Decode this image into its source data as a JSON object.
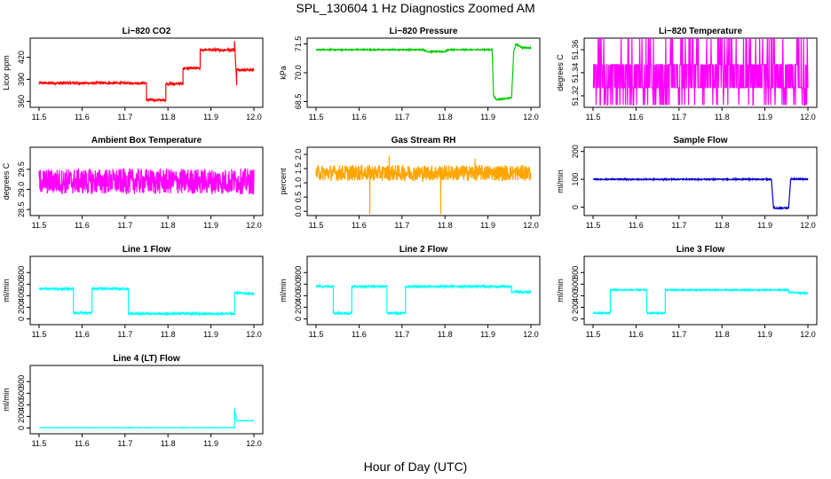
{
  "page": {
    "title": "SPL_130604  1 Hz Diagnostics Zoomed AM",
    "xlabel": "Hour of Day (UTC)"
  },
  "chart_data": [
    {
      "type": "line",
      "title": "Li−820 CO2",
      "ylabel": "Licor ppm",
      "color": "#ff0000",
      "xlim": [
        11.5,
        12.0
      ],
      "xticks": [
        "11.5",
        "11.6",
        "11.7",
        "11.8",
        "11.9",
        "12.0"
      ],
      "ylim": [
        352,
        446
      ],
      "yticks": [
        {
          "v": 360,
          "label": "360"
        },
        {
          "v": 390,
          "label": "390"
        },
        {
          "v": 420,
          "label": "420"
        }
      ],
      "noise": 1.5,
      "x": [
        11.5,
        11.75,
        11.75,
        11.795,
        11.795,
        11.835,
        11.835,
        11.875,
        11.875,
        11.955,
        11.955,
        11.96,
        11.96,
        12.0
      ],
      "y": [
        385,
        385,
        362,
        362,
        384,
        384,
        405,
        405,
        430,
        430,
        442,
        382,
        403,
        403
      ]
    },
    {
      "type": "line",
      "title": "Li−820 Pressure",
      "ylabel": "kPa",
      "color": "#00cc00",
      "xlim": [
        11.5,
        12.0
      ],
      "xticks": [
        "11.5",
        "11.6",
        "11.7",
        "11.8",
        "11.9",
        "12.0"
      ],
      "ylim": [
        68.2,
        71.8
      ],
      "yticks": [
        {
          "v": 68.5,
          "label": "68.5"
        },
        {
          "v": 70.0,
          "label": "70.0"
        },
        {
          "v": 71.5,
          "label": "71.5"
        }
      ],
      "noise": 0.03,
      "x": [
        11.5,
        11.75,
        11.76,
        11.8,
        11.81,
        11.91,
        11.913,
        11.92,
        11.955,
        11.96,
        11.965,
        11.98,
        12.0
      ],
      "y": [
        71.2,
        71.2,
        71.1,
        71.1,
        71.2,
        71.2,
        68.8,
        68.6,
        68.7,
        71.1,
        71.5,
        71.3,
        71.3
      ]
    },
    {
      "type": "line",
      "title": "Li−820 Temperature",
      "ylabel": "degrees C",
      "color": "#ff00ff",
      "xlim": [
        11.5,
        12.0
      ],
      "xticks": [
        "11.5",
        "11.6",
        "11.7",
        "11.8",
        "11.9",
        "12.0"
      ],
      "ylim": [
        51.31,
        51.37
      ],
      "yticks": [
        {
          "v": 51.32,
          "label": "51.32"
        },
        {
          "v": 51.34,
          "label": "51.34"
        },
        {
          "v": 51.36,
          "label": "51.36"
        }
      ],
      "pattern": "binary",
      "levels": [
        51.327,
        51.347,
        51.312,
        51.37
      ],
      "x": [
        11.5,
        12.0
      ],
      "y": [
        51.337,
        51.337
      ]
    },
    {
      "type": "line",
      "title": "Ambient Box Temperature",
      "ylabel": "degrees C",
      "color": "#ff00ff",
      "xlim": [
        11.5,
        12.0
      ],
      "xticks": [
        "11.5",
        "11.6",
        "11.7",
        "11.8",
        "11.9",
        "12.0"
      ],
      "ylim": [
        28.35,
        30.05
      ],
      "yticks": [
        {
          "v": 28.5,
          "label": "28.5"
        },
        {
          "v": 29.0,
          "label": "29.0"
        },
        {
          "v": 29.5,
          "label": "29.5"
        }
      ],
      "pattern": "noise",
      "noise": 0.32,
      "x": [
        11.5,
        12.0
      ],
      "y": [
        29.2,
        29.2
      ]
    },
    {
      "type": "line",
      "title": "Gas Stream RH",
      "ylabel": "percent",
      "color": "#ffa500",
      "xlim": [
        11.5,
        12.0
      ],
      "xticks": [
        "11.5",
        "11.6",
        "11.7",
        "11.8",
        "11.9",
        "12.0"
      ],
      "ylim": [
        -0.15,
        2.25
      ],
      "yticks": [
        {
          "v": 0.0,
          "label": "0.0"
        },
        {
          "v": 0.5,
          "label": "0.5"
        },
        {
          "v": 1.0,
          "label": "1.0"
        },
        {
          "v": 1.5,
          "label": "1.5"
        },
        {
          "v": 2.0,
          "label": "2.0"
        }
      ],
      "pattern": "noise",
      "noise": 0.28,
      "spikes": [
        [
          11.625,
          -0.1
        ],
        [
          11.79,
          -0.1
        ],
        [
          11.67,
          1.95
        ],
        [
          11.87,
          1.85
        ]
      ],
      "x": [
        11.5,
        12.0
      ],
      "y": [
        1.35,
        1.35
      ]
    },
    {
      "type": "line",
      "title": "Sample Flow",
      "ylabel": "ml/min",
      "color": "#0000cc",
      "xlim": [
        11.5,
        12.0
      ],
      "xticks": [
        "11.5",
        "11.6",
        "11.7",
        "11.8",
        "11.9",
        "12.0"
      ],
      "ylim": [
        -30,
        215
      ],
      "yticks": [
        {
          "v": 0,
          "label": "0"
        },
        {
          "v": 100,
          "label": "100"
        },
        {
          "v": 200,
          "label": "200"
        }
      ],
      "noise": 2,
      "x": [
        11.5,
        11.915,
        11.92,
        11.955,
        11.96,
        12.0
      ],
      "y": [
        100,
        100,
        -3,
        -3,
        102,
        100
      ]
    },
    {
      "type": "line",
      "title": "Line 1 Flow",
      "ylabel": "ml/min",
      "color": "#00ffff",
      "xlim": [
        11.5,
        12.0
      ],
      "xticks": [
        "11.5",
        "11.6",
        "11.7",
        "11.8",
        "11.9",
        "12.0"
      ],
      "ylim": [
        -100,
        1080
      ],
      "yticks": [
        {
          "v": 0,
          "label": "0"
        },
        {
          "v": 200,
          "label": "200"
        },
        {
          "v": 400,
          "label": "400"
        },
        {
          "v": 600,
          "label": "600"
        },
        {
          "v": 800,
          "label": "800"
        }
      ],
      "noise": 18,
      "x": [
        11.5,
        11.58,
        11.58,
        11.623,
        11.623,
        11.708,
        11.708,
        11.955,
        11.955,
        12.0
      ],
      "y": [
        520,
        520,
        100,
        100,
        520,
        520,
        90,
        90,
        450,
        430
      ]
    },
    {
      "type": "line",
      "title": "Line 2 Flow",
      "ylabel": "ml/min",
      "color": "#00ffff",
      "xlim": [
        11.5,
        12.0
      ],
      "xticks": [
        "11.5",
        "11.6",
        "11.7",
        "11.8",
        "11.9",
        "12.0"
      ],
      "ylim": [
        -100,
        1080
      ],
      "yticks": [
        {
          "v": 0,
          "label": "0"
        },
        {
          "v": 200,
          "label": "200"
        },
        {
          "v": 400,
          "label": "400"
        },
        {
          "v": 600,
          "label": "600"
        },
        {
          "v": 800,
          "label": "800"
        }
      ],
      "noise": 18,
      "x": [
        11.5,
        11.54,
        11.54,
        11.583,
        11.583,
        11.665,
        11.665,
        11.708,
        11.708,
        11.955,
        11.955,
        12.0
      ],
      "y": [
        560,
        560,
        100,
        100,
        560,
        560,
        100,
        100,
        560,
        560,
        470,
        460
      ]
    },
    {
      "type": "line",
      "title": "Line 3 Flow",
      "ylabel": "ml/min",
      "color": "#00ffff",
      "xlim": [
        11.5,
        12.0
      ],
      "xticks": [
        "11.5",
        "11.6",
        "11.7",
        "11.8",
        "11.9",
        "12.0"
      ],
      "ylim": [
        -100,
        1080
      ],
      "yticks": [
        {
          "v": 0,
          "label": "0"
        },
        {
          "v": 200,
          "label": "200"
        },
        {
          "v": 400,
          "label": "400"
        },
        {
          "v": 600,
          "label": "600"
        },
        {
          "v": 800,
          "label": "800"
        }
      ],
      "noise": 12,
      "x": [
        11.5,
        11.54,
        11.54,
        11.625,
        11.625,
        11.668,
        11.668,
        11.955,
        11.955,
        12.0
      ],
      "y": [
        100,
        100,
        500,
        500,
        100,
        100,
        500,
        500,
        460,
        440
      ]
    },
    {
      "type": "line",
      "title": "Line 4 (LT) Flow",
      "ylabel": "ml/min",
      "color": "#00ffff",
      "xlim": [
        11.5,
        12.0
      ],
      "xticks": [
        "11.5",
        "11.6",
        "11.7",
        "11.8",
        "11.9",
        "12.0"
      ],
      "ylim": [
        -100,
        1080
      ],
      "yticks": [
        {
          "v": 0,
          "label": "0"
        },
        {
          "v": 200,
          "label": "200"
        },
        {
          "v": 400,
          "label": "400"
        },
        {
          "v": 600,
          "label": "600"
        },
        {
          "v": 800,
          "label": "800"
        }
      ],
      "noise": 3,
      "x": [
        11.5,
        11.955,
        11.955,
        11.96,
        11.965,
        12.0
      ],
      "y": [
        5,
        5,
        340,
        130,
        125,
        125
      ]
    }
  ]
}
